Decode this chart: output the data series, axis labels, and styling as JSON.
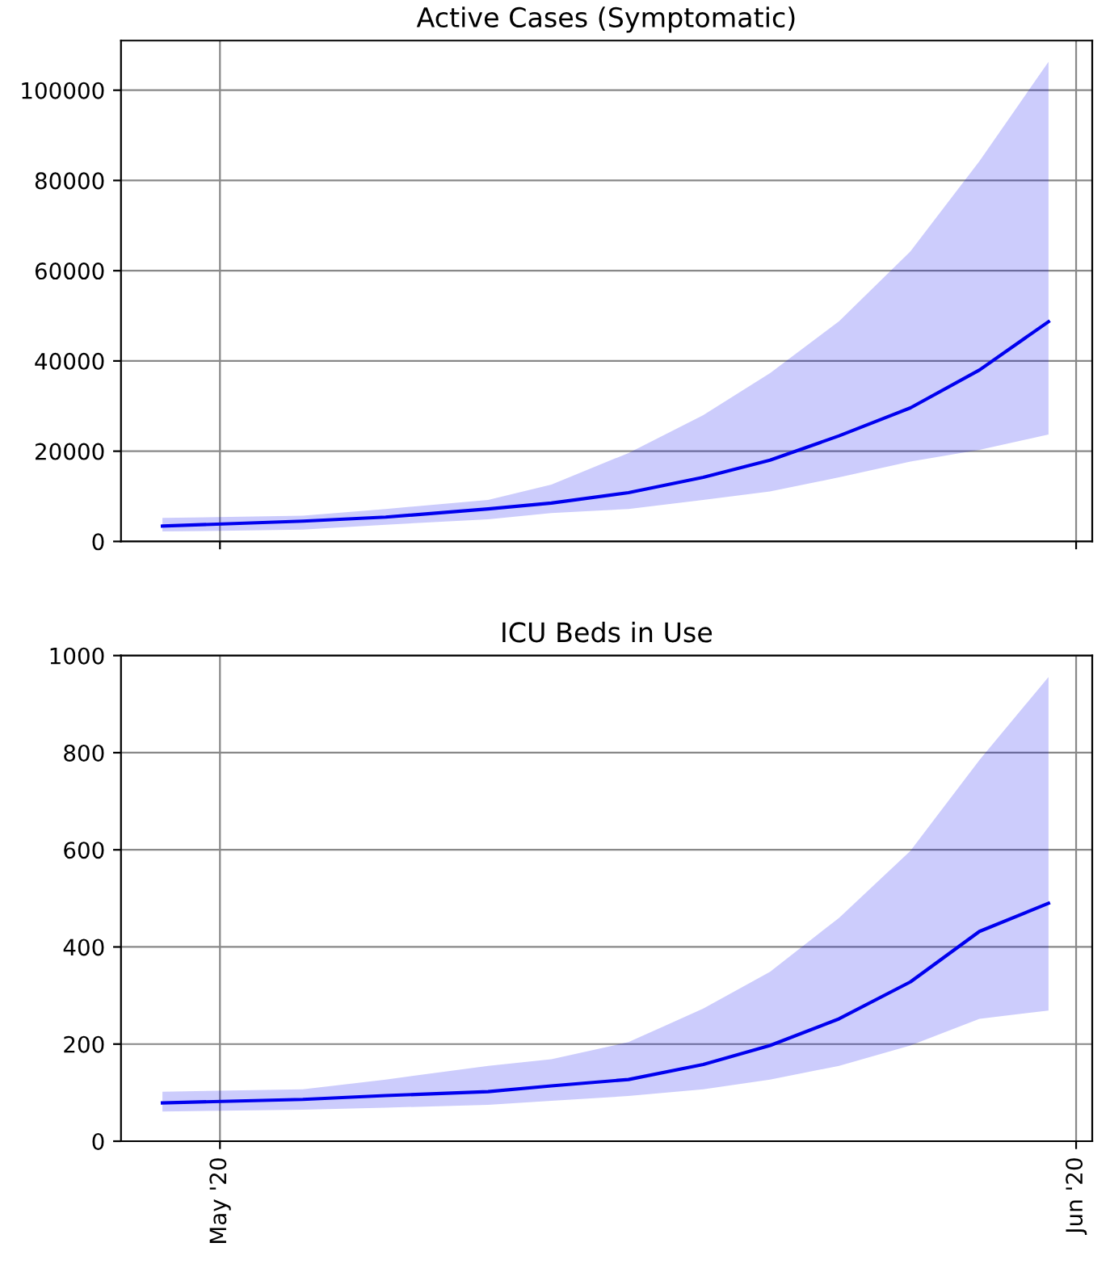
{
  "chart_data": [
    {
      "type": "line",
      "title": "Active Cases (Symptomatic)",
      "x": [
        "2020-04-28T22:00",
        "2020-05-04",
        "2020-05-07",
        "2020-05-10T17:00",
        "2020-05-13",
        "2020-05-15T19:00",
        "2020-05-18T12:00",
        "2020-05-20T22:00",
        "2020-05-23T10:00",
        "2020-05-26",
        "2020-05-28T12:00",
        "2020-05-31"
      ],
      "series": [
        {
          "color": "#0000ee",
          "values": [
            3400,
            4500,
            5400,
            7200,
            8500,
            10800,
            14200,
            18000,
            23400,
            29600,
            38000,
            48700
          ],
          "lower": [
            2200,
            2600,
            3700,
            4900,
            6300,
            7200,
            9200,
            11100,
            14200,
            17700,
            20300,
            23700
          ],
          "upper": [
            5200,
            5700,
            7200,
            9200,
            12600,
            19600,
            28000,
            37300,
            48800,
            64300,
            84300,
            106300
          ]
        }
      ],
      "xlim": [
        "2020-04-27T10:00",
        "2020-06-01T14:00"
      ],
      "ylim": [
        0,
        111000
      ],
      "xticks": [
        {
          "value": "2020-05-01",
          "label": null
        },
        {
          "value": "2020-06-01",
          "label": null
        }
      ],
      "yticks": [
        0,
        20000,
        40000,
        60000,
        80000,
        100000
      ],
      "tick_labels": "y",
      "grid": true
    },
    {
      "type": "line",
      "title": "ICU Beds in Use",
      "x": [
        "2020-04-28T22:00",
        "2020-05-04",
        "2020-05-07",
        "2020-05-10T17:00",
        "2020-05-13",
        "2020-05-15T19:00",
        "2020-05-18T12:00",
        "2020-05-20T22:00",
        "2020-05-23T10:00",
        "2020-05-26",
        "2020-05-28T12:00",
        "2020-05-31"
      ],
      "series": [
        {
          "color": "#0000ee",
          "values": [
            79,
            86,
            94,
            102,
            114,
            127,
            158,
            197,
            252,
            328,
            432,
            490
          ],
          "lower": [
            61,
            65,
            69,
            75,
            83,
            93,
            107,
            127,
            155,
            197,
            252,
            269
          ],
          "upper": [
            102,
            107,
            127,
            155,
            169,
            204,
            273,
            349,
            460,
            598,
            785,
            956
          ]
        }
      ],
      "xlim": [
        "2020-04-27T10:00",
        "2020-06-01T14:00"
      ],
      "ylim": [
        0,
        1000
      ],
      "xticks": [
        {
          "value": "2020-05-01",
          "label": "May '20"
        },
        {
          "value": "2020-06-01",
          "label": "Jun '20"
        }
      ],
      "yticks": [
        0,
        200,
        400,
        600,
        800,
        1000
      ],
      "grid": true
    }
  ]
}
